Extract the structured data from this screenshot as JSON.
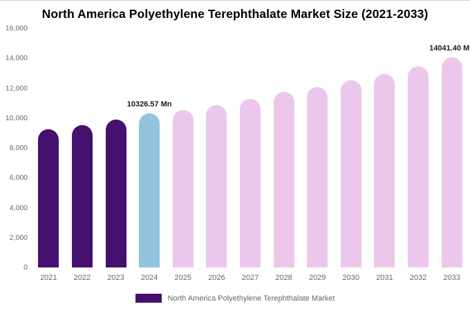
{
  "title": "North America Polyethylene Terephthalate Market Size (2021-2033)",
  "chart_data": {
    "type": "bar",
    "title": "North America Polyethylene Terephthalate Market Size (2021-2033)",
    "xlabel": "",
    "ylabel": "",
    "unit": "Mn",
    "ylim": [
      0,
      16000
    ],
    "grid": false,
    "categories": [
      "2021",
      "2022",
      "2023",
      "2024",
      "2025",
      "2026",
      "2027",
      "2028",
      "2029",
      "2030",
      "2031",
      "2032",
      "2033"
    ],
    "values": [
      9250,
      9550,
      9900,
      10326.57,
      10550,
      10870,
      11300,
      11740,
      12080,
      12520,
      12960,
      13450,
      14041.4
    ],
    "y_ticks": [
      "16,000",
      "14,000",
      "12,000",
      "10,000",
      "8,000",
      "6,000",
      "4,000",
      "2,000",
      "0"
    ],
    "colors": {
      "historical": "#45106e",
      "highlight": "#92c4df",
      "forecast": "#ebc8eb"
    },
    "bar_color_keys": [
      "historical",
      "historical",
      "historical",
      "highlight",
      "forecast",
      "forecast",
      "forecast",
      "forecast",
      "forecast",
      "forecast",
      "forecast",
      "forecast",
      "forecast"
    ],
    "annotations": [
      {
        "index": 3,
        "text": "10326.57 Mn"
      },
      {
        "index": 12,
        "text": "14041.40 Mn"
      }
    ],
    "legend": {
      "label": "North America Polyethylene Terephthalate Market",
      "swatch_color": "#45106e",
      "position": "bottom"
    }
  }
}
